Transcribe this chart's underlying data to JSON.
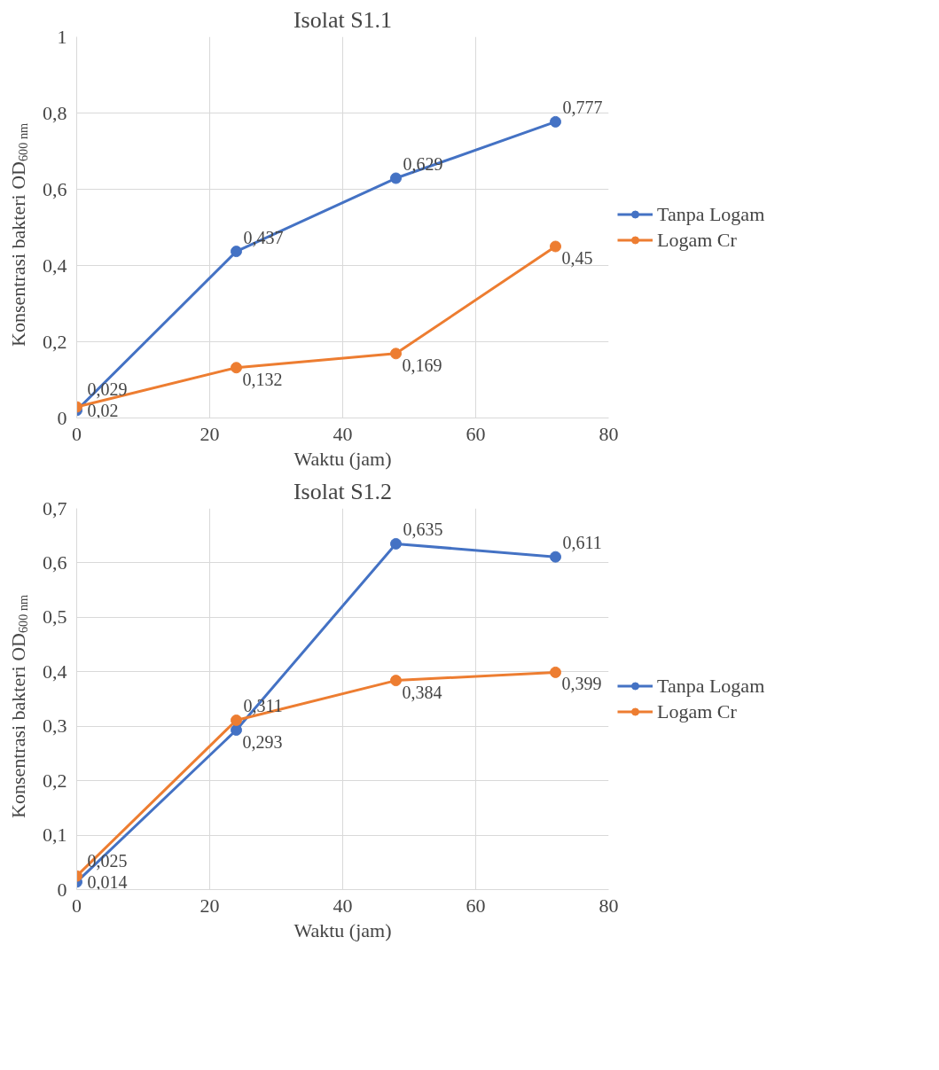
{
  "chart_data": [
    {
      "type": "line",
      "title": "Isolat S1.1",
      "xlabel": "Waktu (jam)",
      "ylabel": "Konsentrasi bakteri OD$_{600 nm}$",
      "x": [
        0,
        24,
        48,
        72
      ],
      "series": [
        {
          "name": "Tanpa Logam",
          "color": "#4472c4",
          "values": [
            0.02,
            0.437,
            0.629,
            0.777
          ],
          "value_labels": [
            "0,02",
            "0,437",
            "0,629",
            "0,777"
          ]
        },
        {
          "name": "Logam Cr",
          "color": "#ed7d31",
          "values": [
            0.029,
            0.132,
            0.169,
            0.45
          ],
          "value_labels": [
            "0,029",
            "0,132",
            "0,169",
            "0,45"
          ]
        }
      ],
      "xlim": [
        0,
        80
      ],
      "xticks": [
        0,
        20,
        40,
        60,
        80
      ],
      "ylim": [
        0,
        1
      ],
      "yticks": [
        0,
        {
          "value": 0.2,
          "label": "0,2"
        },
        {
          "value": 0.4,
          "label": "0,4"
        },
        {
          "value": 0.6,
          "label": "0,6"
        },
        {
          "value": 0.8,
          "label": "0,8"
        },
        1
      ],
      "grid": true,
      "legend": "right",
      "marker": "circle",
      "line_style": "solid"
    },
    {
      "type": "line",
      "title": "Isolat S1.2",
      "xlabel": "Waktu (jam)",
      "ylabel": "Konsentrasi bakteri OD$_{600 nm}$",
      "x": [
        0,
        24,
        48,
        72
      ],
      "series": [
        {
          "name": "Tanpa Logam",
          "color": "#4472c4",
          "values": [
            0.014,
            0.293,
            0.635,
            0.611
          ],
          "value_labels": [
            "0,014",
            "0,293",
            "0,635",
            "0,611"
          ]
        },
        {
          "name": "Logam Cr",
          "color": "#ed7d31",
          "values": [
            0.025,
            0.311,
            0.384,
            0.399
          ],
          "value_labels": [
            "0,025",
            "0,311",
            "0,384",
            "0,399"
          ]
        }
      ],
      "xlim": [
        0,
        80
      ],
      "xticks": [
        0,
        20,
        40,
        60,
        80
      ],
      "ylim": [
        0,
        0.7
      ],
      "yticks": [
        0,
        {
          "value": 0.1,
          "label": "0,1"
        },
        {
          "value": 0.2,
          "label": "0,2"
        },
        {
          "value": 0.3,
          "label": "0,3"
        },
        {
          "value": 0.4,
          "label": "0,4"
        },
        {
          "value": 0.5,
          "label": "0,5"
        },
        {
          "value": 0.6,
          "label": "0,6"
        },
        {
          "value": 0.7,
          "label": "0,7"
        }
      ],
      "grid": true,
      "legend": "right",
      "marker": "circle",
      "line_style": "solid"
    }
  ]
}
